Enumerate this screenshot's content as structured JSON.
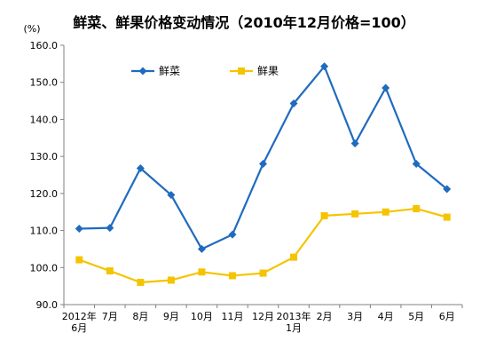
{
  "chart_data": {
    "type": "line",
    "title": "鲜菜、鲜果价格变动情况（2010年12月价格=100）",
    "y_unit": "(%)",
    "categories": [
      [
        "2012年",
        "6月"
      ],
      [
        "7月"
      ],
      [
        "8月"
      ],
      [
        "9月"
      ],
      [
        "10月"
      ],
      [
        "11月"
      ],
      [
        "12月"
      ],
      [
        "2013年",
        "1月"
      ],
      [
        "2月"
      ],
      [
        "3月"
      ],
      [
        "4月"
      ],
      [
        "5月"
      ],
      [
        "6月"
      ]
    ],
    "ylim": [
      90,
      160
    ],
    "yticks": [
      "90.0",
      "100.0",
      "110.0",
      "120.0",
      "130.0",
      "140.0",
      "150.0",
      "160.0"
    ],
    "grid": false,
    "legend_position": "top-left",
    "series": [
      {
        "name": "鲜菜",
        "color": "#1F6BBF",
        "marker": "diamond",
        "values": [
          110.5,
          110.7,
          126.8,
          119.6,
          105.0,
          108.9,
          128.0,
          144.3,
          154.3,
          133.5,
          148.5,
          128.0,
          121.2
        ]
      },
      {
        "name": "鲜果",
        "color": "#F5C400",
        "marker": "square",
        "values": [
          102.1,
          99.1,
          96.0,
          96.6,
          98.8,
          97.8,
          98.5,
          102.8,
          114.0,
          114.5,
          115.0,
          115.9,
          113.6
        ]
      }
    ]
  }
}
